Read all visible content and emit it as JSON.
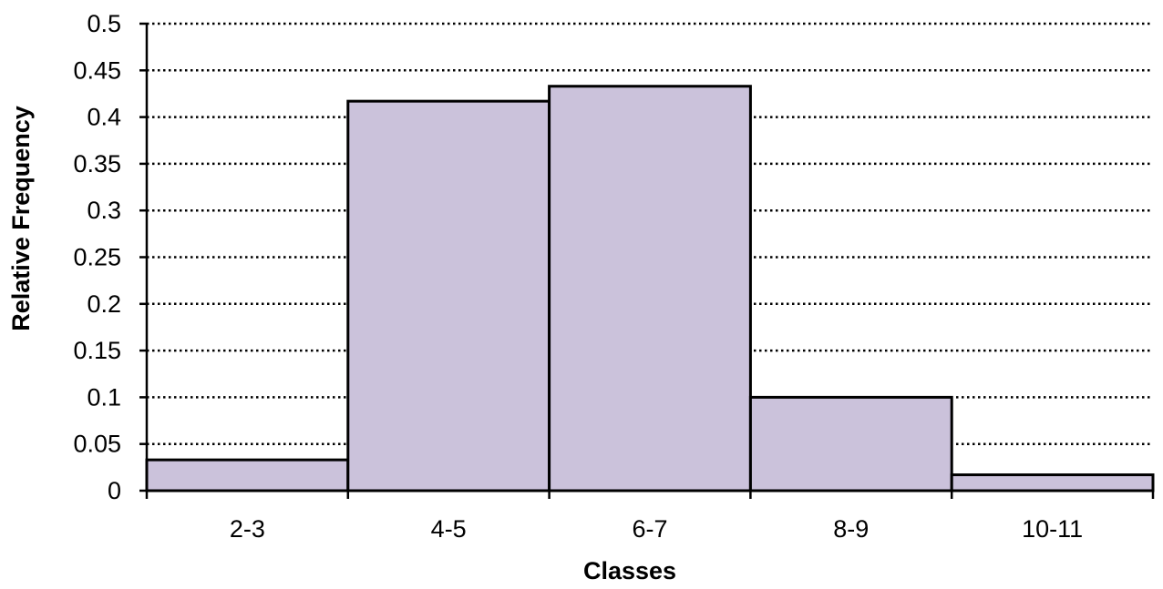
{
  "chart_data": {
    "type": "bar",
    "title": "",
    "xlabel": "Classes",
    "ylabel": "Relative Frequency",
    "categories": [
      "2-3",
      "4-5",
      "6-7",
      "8-9",
      "10-11"
    ],
    "values": [
      0.033,
      0.417,
      0.433,
      0.1,
      0.017
    ],
    "ylim": [
      0,
      0.5
    ],
    "yticks": [
      "0",
      "0.05",
      "0.1",
      "0.15",
      "0.2",
      "0.25",
      "0.3",
      "0.35",
      "0.4",
      "0.45",
      "0.5"
    ],
    "ytick_values": [
      0,
      0.05,
      0.1,
      0.15,
      0.2,
      0.25,
      0.3,
      0.35,
      0.4,
      0.45,
      0.5
    ],
    "grid": true,
    "grid_style": "dotted-horizontal",
    "bar_color": "#CBC2DB",
    "bar_edge_color": "#000000",
    "bar_gap": 0
  }
}
